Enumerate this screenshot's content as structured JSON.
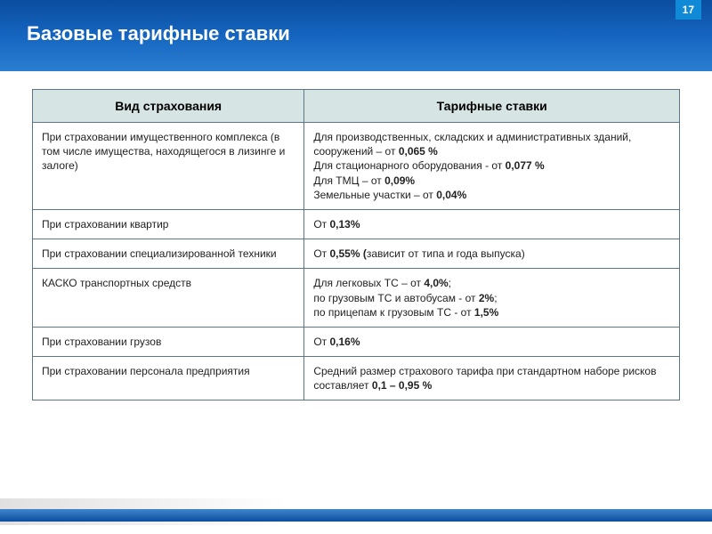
{
  "page_number": "17",
  "title": "Базовые тарифные ставки",
  "table": {
    "columns": [
      "Вид страхования",
      "Тарифные ставки"
    ],
    "header_bg": "#d6e4e4",
    "border_color": "#5c7686",
    "rows": [
      {
        "type": "При страховании имущественного комплекса (в том числе имущества, находящегося в лизинге и залоге)",
        "rate_lines": [
          {
            "prefix": "Для производственных, складских и административных зданий, сооружений – от ",
            "bold": "0,065 %",
            "suffix": ""
          },
          {
            "prefix": "Для стационарного оборудования - от ",
            "bold": "0,077 %",
            "suffix": ""
          },
          {
            "prefix": "Для ТМЦ – от ",
            "bold": "0,09%",
            "suffix": ""
          },
          {
            "prefix": " Земельные участки – от ",
            "bold": "0,04%",
            "suffix": ""
          }
        ]
      },
      {
        "type": "При страховании квартир",
        "rate_lines": [
          {
            "prefix": "От ",
            "bold": "0,13%",
            "suffix": ""
          }
        ]
      },
      {
        "type": "При страховании специализированной техники",
        "rate_lines": [
          {
            "prefix": "От ",
            "bold": "0,55% (",
            "suffix": "зависит от типа и года выпуска)"
          }
        ]
      },
      {
        "type": "КАСКО транспортных средств",
        "rate_lines": [
          {
            "prefix": "Для легковых ТС – от ",
            "bold": "4,0%",
            "suffix": ";"
          },
          {
            "prefix": "по грузовым ТС и автобусам - от ",
            "bold": "2%",
            "suffix": ";"
          },
          {
            "prefix": "по прицепам к грузовым ТС - от ",
            "bold": "1,5%",
            "suffix": ""
          }
        ]
      },
      {
        "type": "При страховании грузов",
        "rate_lines": [
          {
            "prefix": "От ",
            "bold": "0,16%",
            "suffix": ""
          }
        ]
      },
      {
        "type": "При страховании персонала предприятия",
        "rate_lines": [
          {
            "prefix": "Средний размер страхового тарифа при стандартном наборе рисков составляет ",
            "bold": "0,1 – 0,95 %",
            "suffix": ""
          }
        ]
      }
    ]
  }
}
